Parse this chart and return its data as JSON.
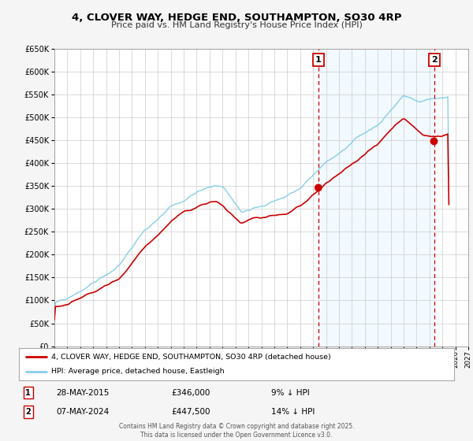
{
  "title": "4, CLOVER WAY, HEDGE END, SOUTHAMPTON, SO30 4RP",
  "subtitle": "Price paid vs. HM Land Registry's House Price Index (HPI)",
  "hpi_color": "#87CEEB",
  "hpi_fill_color": "#ddeeff",
  "price_color": "#cc0000",
  "marker_color": "#cc0000",
  "vline_color": "#cc0000",
  "bg_color": "#f5f5f5",
  "plot_bg_color": "#ffffff",
  "legend_label_price": "4, CLOVER WAY, HEDGE END, SOUTHAMPTON, SO30 4RP (detached house)",
  "legend_label_hpi": "HPI: Average price, detached house, Eastleigh",
  "annotation1_label": "1",
  "annotation1_date": "28-MAY-2015",
  "annotation1_value": "£346,000",
  "annotation1_hpi": "9% ↓ HPI",
  "annotation1_year": 2015.41,
  "annotation1_price": 346000,
  "annotation2_label": "2",
  "annotation2_date": "07-MAY-2024",
  "annotation2_value": "£447,500",
  "annotation2_hpi": "14% ↓ HPI",
  "annotation2_year": 2024.35,
  "annotation2_price": 447500,
  "xmin": 1995,
  "xmax": 2027,
  "ymin": 0,
  "ymax": 650000,
  "yticks": [
    0,
    50000,
    100000,
    150000,
    200000,
    250000,
    300000,
    350000,
    400000,
    450000,
    500000,
    550000,
    600000,
    650000
  ],
  "footer": "Contains HM Land Registry data © Crown copyright and database right 2025.\nThis data is licensed under the Open Government Licence v3.0.",
  "grid_color": "#cccccc"
}
